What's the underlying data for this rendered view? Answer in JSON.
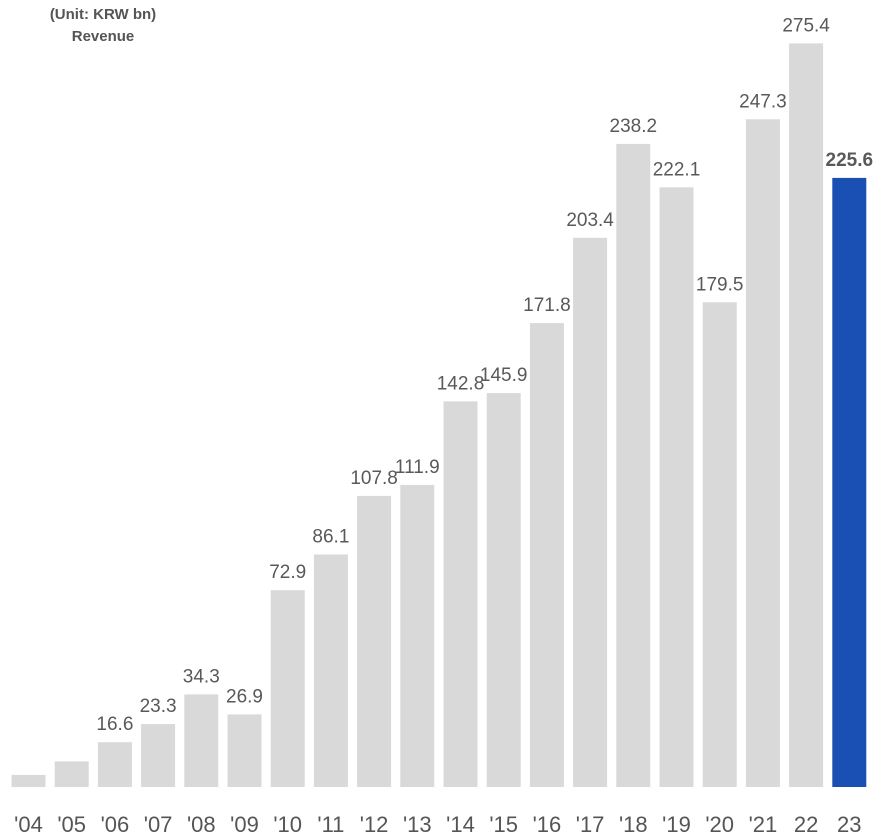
{
  "chart_data": {
    "type": "bar",
    "unit_label": "(Unit: KRW bn)",
    "title": "Revenue",
    "categories": [
      "'04",
      "'05",
      "'06",
      "'07",
      "'08",
      "'09",
      "'10",
      "'11",
      "'12",
      "'13",
      "'14",
      "'15",
      "'16",
      "'17",
      "'18",
      "'19",
      "'20",
      "'21",
      "22",
      "23"
    ],
    "values": [
      4.5,
      9.5,
      16.6,
      23.3,
      34.3,
      26.9,
      72.9,
      86.1,
      107.8,
      111.9,
      142.8,
      145.9,
      171.8,
      203.4,
      238.2,
      222.1,
      179.5,
      247.3,
      275.4,
      225.6
    ],
    "value_labels": [
      "",
      "",
      "16.6",
      "23.3",
      "34.3",
      "26.9",
      "72.9",
      "86.1",
      "107.8",
      "111.9",
      "142.8",
      "145.9",
      "171.8",
      "203.4",
      "238.2",
      "222.1",
      "179.5",
      "247.3",
      "275.4",
      "225.6"
    ],
    "highlight_index": 19,
    "colors": {
      "bar": "#d9d9d9",
      "highlight": "#1a4fb4",
      "label": "#595959",
      "tick": "#555555"
    },
    "ylim": [
      0,
      290
    ],
    "grid": false,
    "legend": "none"
  }
}
